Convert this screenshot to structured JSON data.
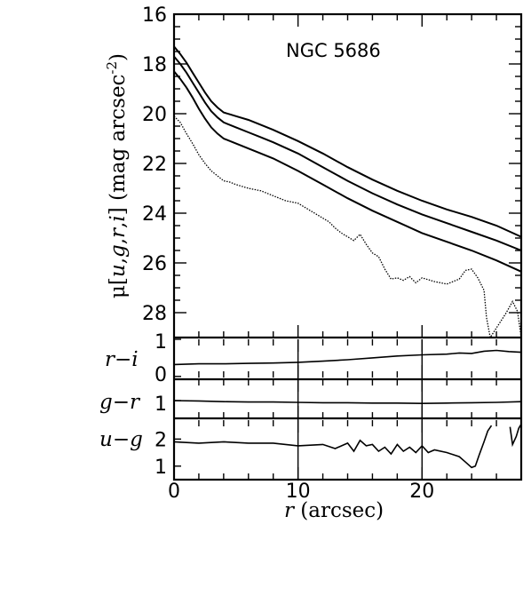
{
  "chart_data": [
    {
      "panel": "surface-brightness",
      "type": "line",
      "annotation": "NGC 5686",
      "ylabel_parts": [
        "μ[",
        "u",
        ",",
        "g",
        ",",
        "r",
        ",",
        "i",
        "] (mag arcsec",
        "-2",
        ")"
      ],
      "xlim": [
        0,
        28
      ],
      "ylim": [
        16,
        29
      ],
      "y_inverted": true,
      "yticks": [
        16,
        18,
        20,
        22,
        24,
        26,
        28
      ],
      "series": [
        {
          "id": "g",
          "style": "solid",
          "x": [
            0,
            0.5,
            1,
            1.5,
            2,
            2.5,
            3,
            3.5,
            4,
            5,
            6,
            7,
            8,
            10,
            12,
            14,
            16,
            18,
            20,
            22,
            24,
            26,
            28
          ],
          "y": [
            17.3,
            17.6,
            17.95,
            18.35,
            18.75,
            19.15,
            19.5,
            19.75,
            19.95,
            20.1,
            20.25,
            20.45,
            20.65,
            21.1,
            21.6,
            22.15,
            22.65,
            23.1,
            23.5,
            23.85,
            24.15,
            24.5,
            24.95
          ]
        },
        {
          "id": "r",
          "style": "solid",
          "x": [
            0,
            0.5,
            1,
            1.5,
            2,
            2.5,
            3,
            3.5,
            4,
            5,
            6,
            7,
            8,
            10,
            12,
            14,
            16,
            18,
            20,
            22,
            24,
            26,
            28
          ],
          "y": [
            17.7,
            18.0,
            18.35,
            18.75,
            19.15,
            19.55,
            19.9,
            20.15,
            20.35,
            20.55,
            20.75,
            20.95,
            21.15,
            21.6,
            22.15,
            22.7,
            23.2,
            23.65,
            24.05,
            24.4,
            24.75,
            25.1,
            25.5
          ]
        },
        {
          "id": "i",
          "style": "solid",
          "x": [
            0,
            0.5,
            1,
            1.5,
            2,
            2.5,
            3,
            3.5,
            4,
            5,
            6,
            7,
            8,
            10,
            12,
            14,
            16,
            18,
            20,
            22,
            24,
            26,
            28
          ],
          "y": [
            18.3,
            18.6,
            18.95,
            19.35,
            19.8,
            20.2,
            20.55,
            20.8,
            21.0,
            21.2,
            21.4,
            21.6,
            21.8,
            22.3,
            22.85,
            23.4,
            23.9,
            24.35,
            24.8,
            25.15,
            25.5,
            25.9,
            26.35
          ]
        },
        {
          "id": "u",
          "style": "dotted",
          "x": [
            0,
            0.5,
            1,
            1.5,
            2,
            2.5,
            3,
            3.5,
            4,
            4.5,
            5,
            6,
            7,
            8,
            9,
            10,
            11,
            12,
            12.5,
            13,
            13.5,
            14,
            14.5,
            15,
            15.5,
            16,
            16.5,
            17,
            17.5,
            18,
            18.5,
            19,
            19.5,
            20,
            21,
            22,
            23,
            23.5,
            24,
            24.5,
            25,
            25.2,
            25.5,
            26.8,
            27.3,
            27.7,
            28
          ],
          "y": [
            20.1,
            20.35,
            20.8,
            21.2,
            21.65,
            22.0,
            22.3,
            22.5,
            22.7,
            22.75,
            22.85,
            23.0,
            23.1,
            23.3,
            23.5,
            23.6,
            23.9,
            24.2,
            24.35,
            24.6,
            24.8,
            24.95,
            25.1,
            24.85,
            25.25,
            25.6,
            25.75,
            26.25,
            26.65,
            26.6,
            26.7,
            26.55,
            26.8,
            26.6,
            26.75,
            26.85,
            26.65,
            26.3,
            26.25,
            26.6,
            27.1,
            28.2,
            29.0,
            28.0,
            27.55,
            27.95,
            29.0
          ]
        }
      ]
    },
    {
      "panel": "r-i",
      "type": "line",
      "ylabel_parts": [
        "r",
        "−",
        "i"
      ],
      "xlim": [
        0,
        28
      ],
      "ylim": [
        -0.03,
        1.0
      ],
      "yticks": [
        0,
        1
      ],
      "series": [
        {
          "id": "r-i",
          "style": "solid",
          "x": [
            0,
            2,
            4,
            6,
            8,
            10,
            12,
            14,
            16,
            18,
            20,
            22,
            23,
            24,
            25,
            26,
            27,
            28
          ],
          "y": [
            0.32,
            0.34,
            0.34,
            0.35,
            0.36,
            0.38,
            0.41,
            0.45,
            0.5,
            0.55,
            0.58,
            0.6,
            0.63,
            0.62,
            0.68,
            0.7,
            0.67,
            0.65
          ]
        }
      ]
    },
    {
      "panel": "g-r",
      "type": "line",
      "ylabel_parts": [
        "g",
        "−",
        "r"
      ],
      "xlim": [
        0,
        28
      ],
      "yticks": [
        1
      ],
      "series": [
        {
          "id": "g-r",
          "style": "solid",
          "x": [
            0,
            2,
            4,
            6,
            8,
            10,
            12,
            14,
            16,
            18,
            20,
            22,
            24,
            26,
            28
          ],
          "y": [
            1.0,
            0.99,
            0.97,
            0.96,
            0.96,
            0.95,
            0.94,
            0.94,
            0.93,
            0.93,
            0.92,
            0.93,
            0.94,
            0.95,
            0.97
          ]
        }
      ]
    },
    {
      "panel": "u-g",
      "type": "line",
      "ylabel_parts": [
        "u",
        "−",
        "g"
      ],
      "xlim": [
        0,
        28
      ],
      "ylim": [
        0.5,
        2.7
      ],
      "yticks": [
        1,
        2
      ],
      "xlabel_parts": [
        "r",
        " (arcsec)"
      ],
      "xticks": [
        0,
        10,
        20
      ],
      "series": [
        {
          "id": "u-g",
          "style": "solid",
          "x": [
            0,
            2,
            4,
            6,
            8,
            10,
            12,
            13,
            14,
            14.5,
            15,
            15.5,
            16,
            16.5,
            17,
            17.5,
            18,
            18.5,
            19,
            19.5,
            20,
            20.5,
            21,
            22,
            23,
            23.5,
            24,
            24.3,
            24.6,
            25,
            25.3,
            25.6
          ],
          "y": [
            1.9,
            1.85,
            1.9,
            1.85,
            1.85,
            1.75,
            1.8,
            1.65,
            1.85,
            1.55,
            1.95,
            1.75,
            1.8,
            1.55,
            1.7,
            1.45,
            1.8,
            1.55,
            1.7,
            1.5,
            1.75,
            1.5,
            1.6,
            1.5,
            1.35,
            1.15,
            0.95,
            1.0,
            1.4,
            1.9,
            2.3,
            2.5
          ]
        },
        {
          "id": "u-g-tail",
          "style": "solid",
          "x": [
            27.1,
            27.3,
            27.6,
            27.8,
            28
          ],
          "y": [
            2.45,
            1.8,
            2.1,
            2.4,
            2.55
          ]
        }
      ]
    }
  ]
}
